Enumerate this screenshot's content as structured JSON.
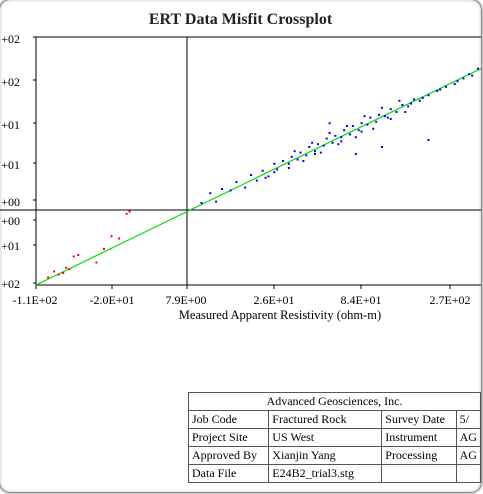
{
  "chart_data": {
    "type": "scatter",
    "title": "ERT Data Misfit Crossplot",
    "xlabel": "Measured Apparent Resistivity (ohm-m)",
    "ylabel": "",
    "x_tick_labels": [
      "-1.1E+02",
      "-2.0E+01",
      "7.9E+00",
      "2.6E+01",
      "8.4E+01",
      "2.7E+02"
    ],
    "y_tick_labels_upper": [
      "+02",
      "+02",
      "+01",
      "+01",
      "+00"
    ],
    "y_tick_labels_lower": [
      "+00",
      "+01",
      "+02"
    ],
    "series": [
      {
        "color": "#0000ff",
        "points": [
          [
            0.05,
            0.05
          ],
          [
            0.08,
            0.12
          ],
          [
            0.1,
            0.06
          ],
          [
            0.12,
            0.15
          ],
          [
            0.15,
            0.14
          ],
          [
            0.17,
            0.2
          ],
          [
            0.2,
            0.16
          ],
          [
            0.22,
            0.25
          ],
          [
            0.24,
            0.21
          ],
          [
            0.26,
            0.28
          ],
          [
            0.28,
            0.24
          ],
          [
            0.3,
            0.33
          ],
          [
            0.31,
            0.29
          ],
          [
            0.33,
            0.35
          ],
          [
            0.35,
            0.33
          ],
          [
            0.36,
            0.38
          ],
          [
            0.38,
            0.36
          ],
          [
            0.39,
            0.41
          ],
          [
            0.41,
            0.39
          ],
          [
            0.42,
            0.45
          ],
          [
            0.44,
            0.42
          ],
          [
            0.45,
            0.47
          ],
          [
            0.47,
            0.46
          ],
          [
            0.48,
            0.51
          ],
          [
            0.5,
            0.48
          ],
          [
            0.51,
            0.53
          ],
          [
            0.53,
            0.52
          ],
          [
            0.54,
            0.57
          ],
          [
            0.56,
            0.54
          ],
          [
            0.57,
            0.6
          ],
          [
            0.59,
            0.57
          ],
          [
            0.6,
            0.62
          ],
          [
            0.62,
            0.61
          ],
          [
            0.63,
            0.66
          ],
          [
            0.65,
            0.63
          ],
          [
            0.66,
            0.68
          ],
          [
            0.68,
            0.67
          ],
          [
            0.7,
            0.72
          ],
          [
            0.72,
            0.7
          ],
          [
            0.74,
            0.75
          ],
          [
            0.76,
            0.74
          ],
          [
            0.78,
            0.79
          ],
          [
            0.8,
            0.78
          ],
          [
            0.83,
            0.82
          ],
          [
            0.86,
            0.85
          ],
          [
            0.89,
            0.88
          ],
          [
            0.92,
            0.9
          ],
          [
            0.95,
            0.94
          ],
          [
            0.98,
            0.96
          ],
          [
            1.0,
            1.01
          ],
          [
            0.37,
            0.42
          ],
          [
            0.4,
            0.35
          ],
          [
            0.43,
            0.48
          ],
          [
            0.46,
            0.41
          ],
          [
            0.49,
            0.55
          ],
          [
            0.52,
            0.47
          ],
          [
            0.55,
            0.6
          ],
          [
            0.58,
            0.52
          ],
          [
            0.61,
            0.67
          ],
          [
            0.64,
            0.58
          ],
          [
            0.67,
            0.73
          ],
          [
            0.7,
            0.65
          ],
          [
            0.73,
            0.78
          ],
          [
            0.75,
            0.7
          ],
          [
            0.49,
            0.62
          ],
          [
            0.58,
            0.4
          ],
          [
            0.83,
            0.5
          ],
          [
            0.67,
            0.45
          ],
          [
            0.35,
            0.3
          ],
          [
            0.3,
            0.27
          ],
          [
            0.27,
            0.23
          ],
          [
            0.44,
            0.4
          ],
          [
            0.53,
            0.49
          ],
          [
            0.6,
            0.56
          ],
          [
            0.69,
            0.66
          ],
          [
            0.77,
            0.76
          ],
          [
            0.81,
            0.8
          ],
          [
            0.87,
            0.86
          ],
          [
            0.93,
            0.92
          ],
          [
            0.97,
            0.97
          ]
        ]
      },
      {
        "color": "#ff0000",
        "points": [
          [
            -0.88,
            -0.82
          ],
          [
            -0.85,
            -0.86
          ],
          [
            -0.82,
            -0.84
          ],
          [
            -0.8,
            -0.77
          ],
          [
            -0.75,
            -0.62
          ],
          [
            -0.72,
            -0.6
          ],
          [
            -0.6,
            -0.7
          ],
          [
            -0.55,
            -0.52
          ],
          [
            -0.5,
            -0.35
          ],
          [
            -0.45,
            -0.38
          ],
          [
            -0.4,
            -0.05
          ],
          [
            -0.38,
            -0.02
          ],
          [
            -0.92,
            -0.9
          ],
          [
            -0.78,
            -0.79
          ]
        ]
      }
    ],
    "fit_line_color": "#00dd00"
  },
  "info_table": {
    "company": "Advanced Geosciences, Inc.",
    "rows": [
      [
        "Job Code",
        "Fractured Rock",
        "Survey Date",
        "5/"
      ],
      [
        "Project Site",
        "US West",
        "Instrument",
        "AG"
      ],
      [
        "Approved By",
        "Xianjin Yang",
        "Processing",
        "AG"
      ],
      [
        "Data File",
        "E24B2_trial3.stg",
        "",
        ""
      ]
    ]
  }
}
